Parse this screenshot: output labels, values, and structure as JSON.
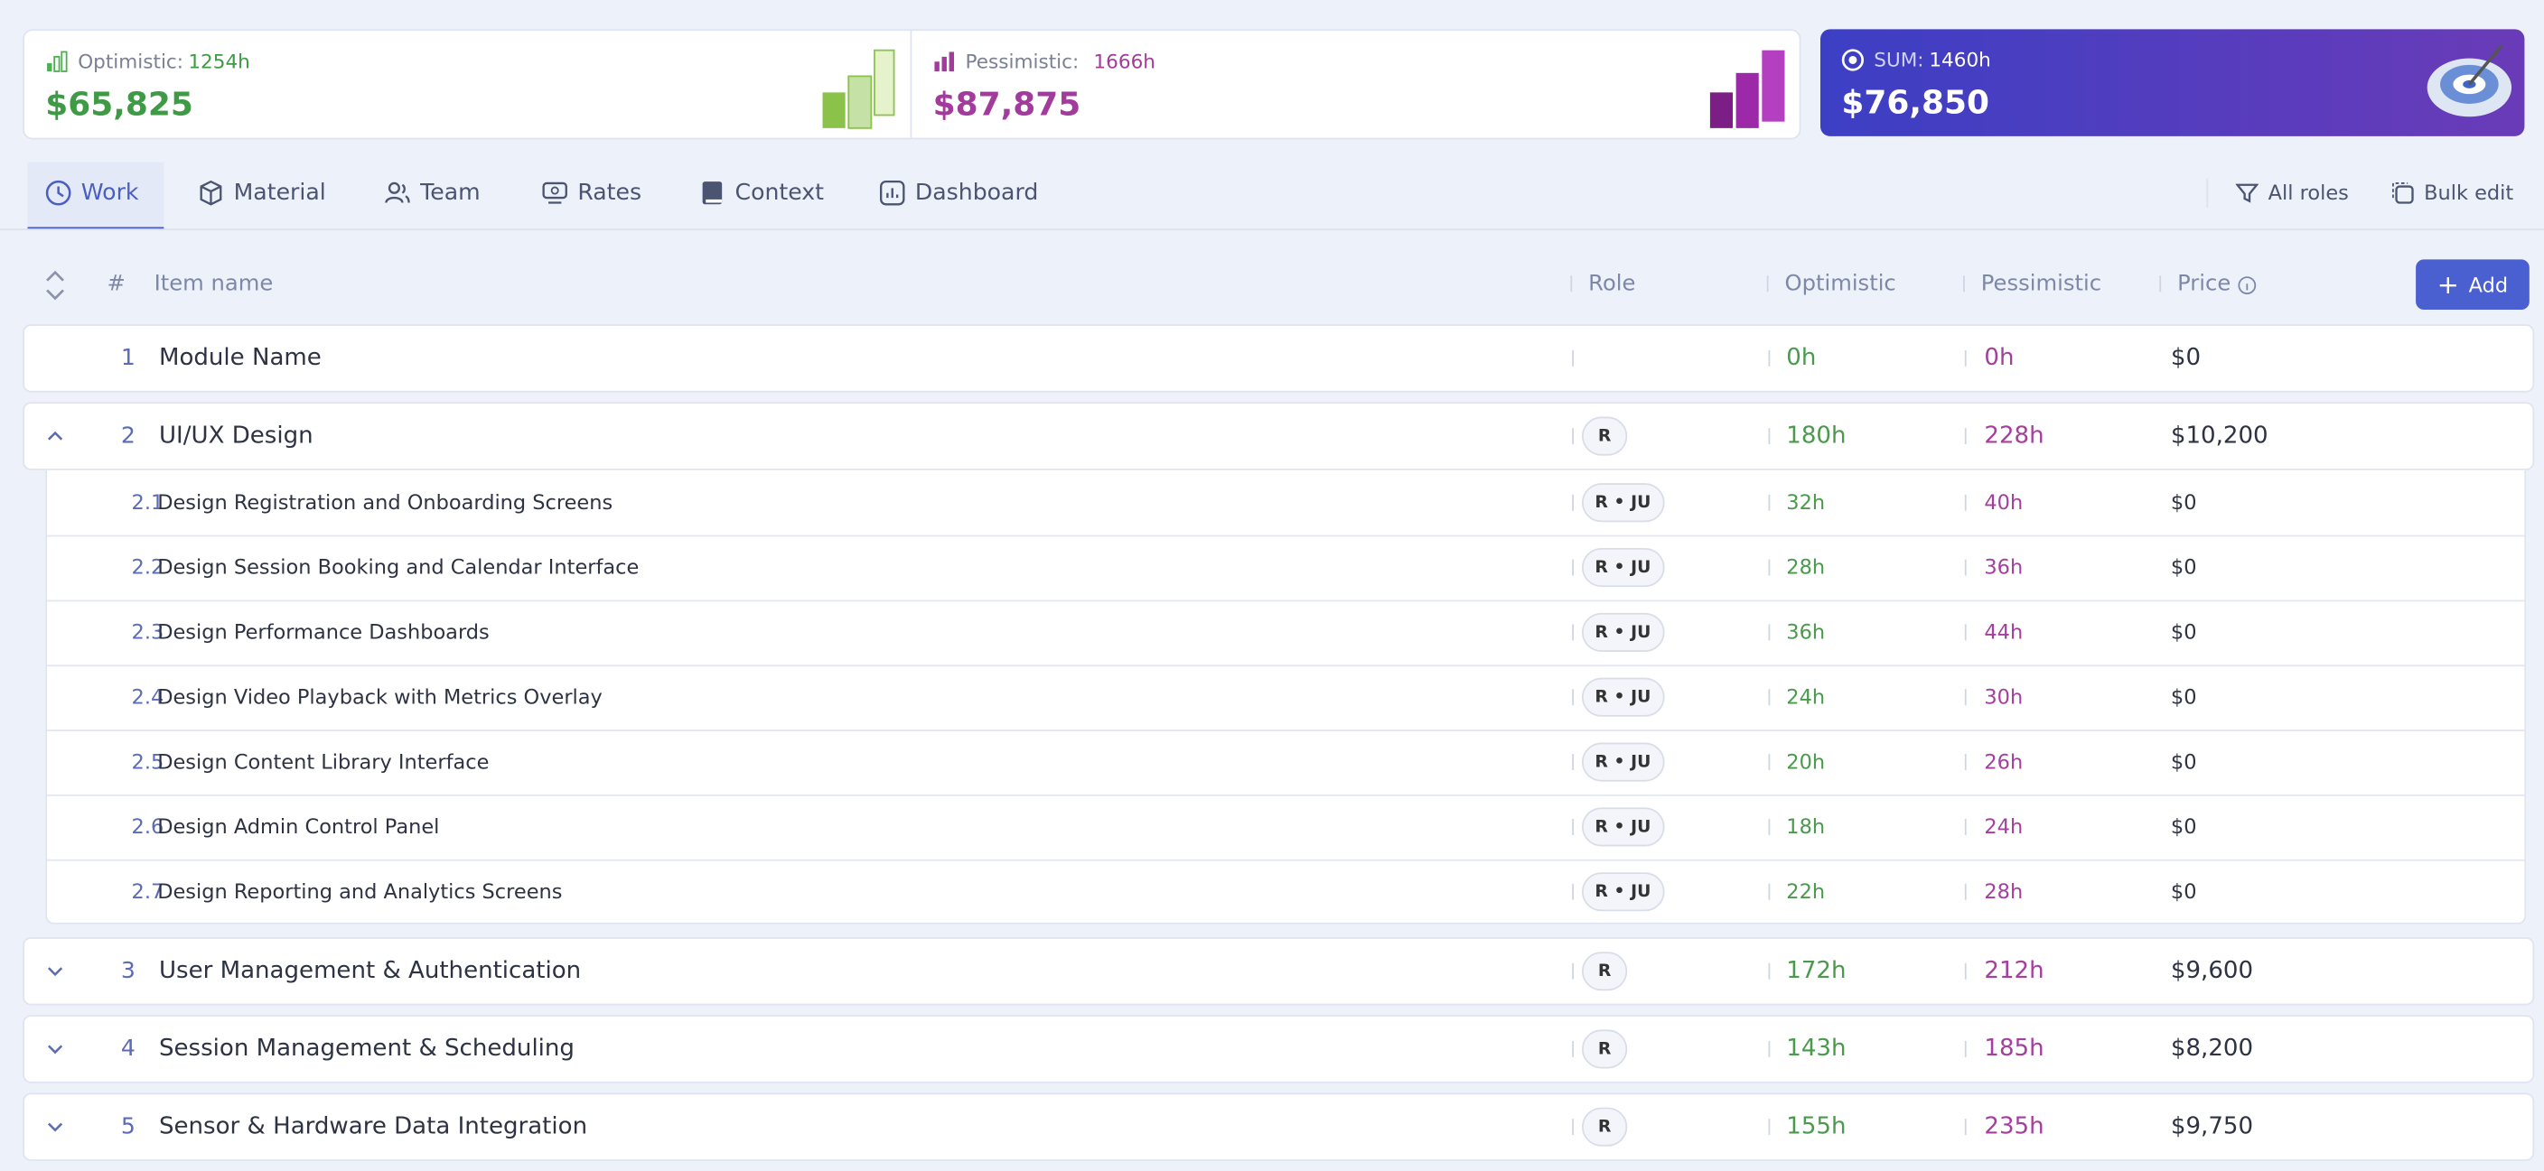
{
  "summary": {
    "optimistic": {
      "label": "Optimistic:",
      "hours": "1254h",
      "amount": "$65,825"
    },
    "pessimistic": {
      "label": "Pessimistic:",
      "hours": "1666h",
      "amount": "$87,875"
    },
    "sum": {
      "label": "SUM:",
      "hours": "1460h",
      "amount": "$76,850"
    }
  },
  "tabs": [
    "Work",
    "Material",
    "Team",
    "Rates",
    "Context",
    "Dashboard"
  ],
  "actions": [
    "All roles",
    "Bulk edit"
  ],
  "table": {
    "header": {
      "number": "#",
      "name": "Item name",
      "role": "Role",
      "optimistic": "Optimistic",
      "pessimistic": "Pessimistic",
      "price": "Price",
      "add": "Add"
    },
    "rows": [
      {
        "number": "1",
        "name": "Module Name",
        "role": null,
        "optimistic": "0h",
        "pessimistic": "0h",
        "price": "$0"
      },
      {
        "number": "2",
        "name": "UI/UX Design",
        "role": "R",
        "optimistic": "180h",
        "pessimistic": "228h",
        "price": "$10,200",
        "children": [
          {
            "number": "2.1",
            "name": "Design Registration and Onboarding Screens",
            "role": "R • JU",
            "optimistic": "32h",
            "pessimistic": "40h",
            "price": "$0"
          },
          {
            "number": "2.2",
            "name": "Design Session Booking and Calendar Interface",
            "role": "R • JU",
            "optimistic": "28h",
            "pessimistic": "36h",
            "price": "$0"
          },
          {
            "number": "2.3",
            "name": "Design Performance Dashboards",
            "role": "R • JU",
            "optimistic": "36h",
            "pessimistic": "44h",
            "price": "$0"
          },
          {
            "number": "2.4",
            "name": "Design Video Playback with Metrics Overlay",
            "role": "R • JU",
            "optimistic": "24h",
            "pessimistic": "30h",
            "price": "$0"
          },
          {
            "number": "2.5",
            "name": "Design Content Library Interface",
            "role": "R • JU",
            "optimistic": "20h",
            "pessimistic": "26h",
            "price": "$0"
          },
          {
            "number": "2.6",
            "name": "Design Admin Control Panel",
            "role": "R • JU",
            "optimistic": "18h",
            "pessimistic": "24h",
            "price": "$0"
          },
          {
            "number": "2.7",
            "name": "Design Reporting and Analytics Screens",
            "role": "R • JU",
            "optimistic": "22h",
            "pessimistic": "28h",
            "price": "$0"
          }
        ]
      },
      {
        "number": "3",
        "name": "User Management & Authentication",
        "role": "R",
        "optimistic": "172h",
        "pessimistic": "212h",
        "price": "$9,600"
      },
      {
        "number": "4",
        "name": "Session Management & Scheduling",
        "role": "R",
        "optimistic": "143h",
        "pessimistic": "185h",
        "price": "$8,200"
      },
      {
        "number": "5",
        "name": "Sensor & Hardware Data Integration",
        "role": "R",
        "optimistic": "155h",
        "pessimistic": "235h",
        "price": "$9,750"
      }
    ]
  }
}
